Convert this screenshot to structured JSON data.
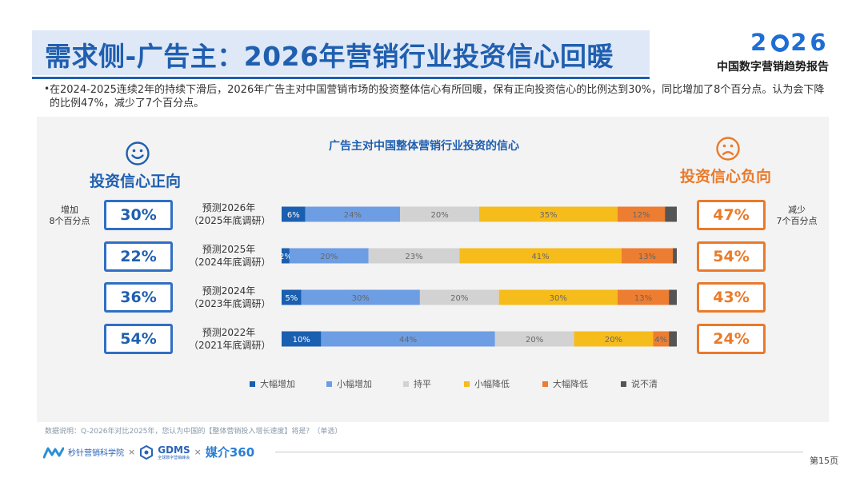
{
  "header": {
    "title": "需求侧-广告主：2026年营销行业投资信心回暖",
    "logo_year_left": "2",
    "logo_year_right": "26",
    "logo_subtitle": "中国数字营销趋势报告"
  },
  "bullet": {
    "text": "在2024-2025连续2年的持续下滑后，2026年广告主对中国营销市场的投资整体信心有所回暖，保有正向投资信心的比例达到30%，同比增加了8个百分点。认为会下降的比例47%，减少了7个百分点。"
  },
  "left_panel": {
    "icon": "smiley-face-icon",
    "label": "投资信心正向",
    "note_line1": "增加",
    "note_line2": "8个百分点",
    "values": [
      "30%",
      "22%",
      "36%",
      "54%"
    ]
  },
  "right_panel": {
    "icon": "sad-face-icon",
    "label": "投资信心负向",
    "note_line1": "减少",
    "note_line2": "7个百分点",
    "values": [
      "47%",
      "54%",
      "43%",
      "24%"
    ]
  },
  "chart_data": {
    "type": "bar",
    "orientation": "horizontal",
    "stacked": true,
    "title": "广告主对中国整体营销行业投资的信心",
    "categories": [
      [
        "预测2026年",
        "（2025年底调研）"
      ],
      [
        "预测2025年",
        "（2024年底调研）"
      ],
      [
        "预测2024年",
        "（2023年底调研）"
      ],
      [
        "预测2022年",
        "（2021年底调研）"
      ]
    ],
    "series": [
      {
        "name": "大幅增加",
        "color": "#1a5fb0",
        "values": [
          6,
          2,
          5,
          10
        ]
      },
      {
        "name": "小幅增加",
        "color": "#6d9ee4",
        "values": [
          24,
          20,
          30,
          44
        ]
      },
      {
        "name": "持平",
        "color": "#d2d2d2",
        "values": [
          20,
          23,
          20,
          20
        ]
      },
      {
        "name": "小幅降低",
        "color": "#f6bc1c",
        "values": [
          35,
          41,
          30,
          20
        ]
      },
      {
        "name": "大幅降低",
        "color": "#ed7d31",
        "values": [
          12,
          13,
          13,
          4
        ]
      },
      {
        "name": "说不清",
        "color": "#555555",
        "values": [
          3,
          1,
          2,
          2
        ]
      }
    ],
    "value_labels_shown": [
      [
        "6%",
        "24%",
        "20%",
        "35%",
        "12%",
        ""
      ],
      [
        "2%",
        "20%",
        "23%",
        "41%",
        "13%",
        ""
      ],
      [
        "5%",
        "30%",
        "20%",
        "30%",
        "13%",
        ""
      ],
      [
        "10%",
        "44%",
        "20%",
        "20%",
        "4%",
        ""
      ]
    ],
    "legend_position": "bottom",
    "xlim": [
      0,
      100
    ]
  },
  "source": "数据说明：Q-2026年对比2025年，您认为中国的【整体营销投入增长速度】将是？（单选）",
  "footer": {
    "logo1_text": "秒针营销科学院",
    "sep1": "×",
    "logo2_text": "GDMS",
    "logo2_sub": "全球数字营销峰会",
    "sep2": "×",
    "logo3_text": "媒介360",
    "page": "第15页"
  }
}
